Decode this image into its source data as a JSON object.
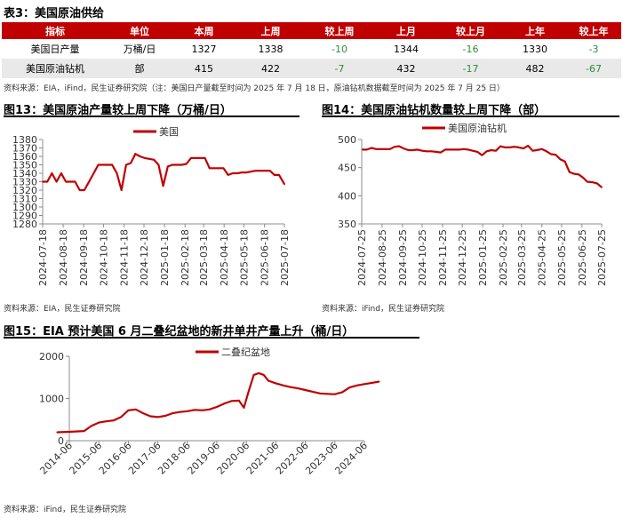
{
  "table": {
    "title": "表3：美国原油供给",
    "headers": [
      "指标",
      "单位",
      "本周",
      "上周",
      "较上周",
      "上月",
      "较上月",
      "上年",
      "较上年"
    ],
    "rows": [
      [
        "美国日产量",
        "万桶/日",
        "1327",
        "1338",
        "-10",
        "1344",
        "-16",
        "1330",
        "-3"
      ],
      [
        "美国原油钻机",
        "部",
        "415",
        "422",
        "-7",
        "432",
        "-17",
        "482",
        "-67"
      ]
    ],
    "source": "资料来源：EIA，iFind，民生证券研究院（注：美国日产量截至时间为 2025 年 7 月 18 日，原油钻机数据截至时间为 2025 年 7 月 25 日）"
  },
  "chart_data": [
    {
      "id": "fig13",
      "type": "line",
      "title": "图13：美国原油产量较上周下降（万桶/日）",
      "source": "资料来源：EIA，民生证券研究院",
      "legend": "top-center",
      "ylim": [
        1280,
        1380
      ],
      "yticks": [
        1280,
        1290,
        1300,
        1310,
        1320,
        1330,
        1340,
        1350,
        1360,
        1370,
        1380
      ],
      "xlim": [
        "2024-07-18",
        "2025-07-18"
      ],
      "xticks": [
        "2024-07-18",
        "2024-08-18",
        "2024-09-18",
        "2024-10-18",
        "2024-11-18",
        "2024-12-18",
        "2025-01-18",
        "2025-02-18",
        "2025-03-18",
        "2025-04-18",
        "2025-05-18",
        "2025-06-18",
        "2025-07-18"
      ],
      "series": [
        {
          "name": "美国",
          "color": "#c00000",
          "x": [
            "2024-07-18",
            "2024-07-25",
            "2024-08-01",
            "2024-08-08",
            "2024-08-15",
            "2024-08-22",
            "2024-08-29",
            "2024-09-05",
            "2024-09-12",
            "2024-09-19",
            "2024-09-26",
            "2024-10-03",
            "2024-10-10",
            "2024-10-17",
            "2024-10-24",
            "2024-10-31",
            "2024-11-07",
            "2024-11-14",
            "2024-11-21",
            "2024-11-28",
            "2024-12-05",
            "2024-12-12",
            "2024-12-19",
            "2024-12-26",
            "2025-01-02",
            "2025-01-09",
            "2025-01-16",
            "2025-01-23",
            "2025-01-30",
            "2025-02-06",
            "2025-02-13",
            "2025-02-20",
            "2025-02-27",
            "2025-03-06",
            "2025-03-13",
            "2025-03-20",
            "2025-03-27",
            "2025-04-03",
            "2025-04-10",
            "2025-04-17",
            "2025-04-24",
            "2025-05-01",
            "2025-05-08",
            "2025-05-15",
            "2025-05-22",
            "2025-05-29",
            "2025-06-05",
            "2025-06-12",
            "2025-06-19",
            "2025-06-26",
            "2025-07-03",
            "2025-07-10",
            "2025-07-18"
          ],
          "values": [
            1330,
            1330,
            1340,
            1330,
            1340,
            1330,
            1330,
            1330,
            1320,
            1320,
            1330,
            1340,
            1350,
            1350,
            1350,
            1350,
            1340,
            1320,
            1350,
            1352,
            1363,
            1360,
            1358,
            1357,
            1356,
            1350,
            1325,
            1348,
            1350,
            1350,
            1350,
            1351,
            1358,
            1358,
            1358,
            1358,
            1346,
            1346,
            1346,
            1346,
            1338,
            1340,
            1340,
            1341,
            1341,
            1342,
            1343,
            1343,
            1343,
            1343,
            1338,
            1338,
            1327
          ]
        }
      ]
    },
    {
      "id": "fig14",
      "type": "line",
      "title": "图14：美国原油钻机数量较上周下降（部）",
      "source": "资料来源：iFind，民生证券研究院",
      "legend": "top-center",
      "ylim": [
        350,
        500
      ],
      "yticks": [
        350,
        400,
        450,
        500
      ],
      "xlim": [
        "2024-07-25",
        "2025-07-25"
      ],
      "xticks": [
        "2024-07-25",
        "2024-08-25",
        "2024-09-25",
        "2024-10-25",
        "2024-11-25",
        "2024-12-25",
        "2025-01-25",
        "2025-02-25",
        "2025-03-25",
        "2025-04-25",
        "2025-05-25",
        "2025-06-25",
        "2025-07-25"
      ],
      "series": [
        {
          "name": "美国原油钻机",
          "color": "#c00000",
          "x": [
            "2024-07-26",
            "2024-08-02",
            "2024-08-09",
            "2024-08-16",
            "2024-08-23",
            "2024-08-30",
            "2024-09-06",
            "2024-09-13",
            "2024-09-20",
            "2024-09-27",
            "2024-10-04",
            "2024-10-11",
            "2024-10-18",
            "2024-10-25",
            "2024-11-01",
            "2024-11-08",
            "2024-11-15",
            "2024-11-22",
            "2024-11-29",
            "2024-12-06",
            "2024-12-13",
            "2024-12-20",
            "2024-12-27",
            "2025-01-03",
            "2025-01-10",
            "2025-01-17",
            "2025-01-24",
            "2025-01-31",
            "2025-02-07",
            "2025-02-14",
            "2025-02-21",
            "2025-02-28",
            "2025-03-07",
            "2025-03-14",
            "2025-03-21",
            "2025-03-28",
            "2025-04-04",
            "2025-04-11",
            "2025-04-17",
            "2025-04-25",
            "2025-05-02",
            "2025-05-09",
            "2025-05-16",
            "2025-05-23",
            "2025-05-30",
            "2025-06-06",
            "2025-06-13",
            "2025-06-20",
            "2025-06-27",
            "2025-07-03",
            "2025-07-11",
            "2025-07-18",
            "2025-07-25"
          ],
          "values": [
            482,
            482,
            485,
            483,
            483,
            483,
            483,
            487,
            488,
            484,
            481,
            481,
            482,
            480,
            479,
            479,
            478,
            477,
            482,
            482,
            482,
            482,
            483,
            482,
            480,
            478,
            472,
            479,
            481,
            480,
            488,
            486,
            486,
            487,
            486,
            484,
            489,
            480,
            481,
            483,
            479,
            474,
            473,
            465,
            461,
            442,
            439,
            438,
            432,
            425,
            424,
            422,
            415
          ]
        }
      ]
    },
    {
      "id": "fig15",
      "type": "line",
      "title": "图15：EIA 预计美国 6 月二叠纪盆地的新井单井产量上升（桶/日）",
      "source": "资料来源：iFind，民生证券研究院",
      "legend": "top-center",
      "ylim": [
        0,
        2000
      ],
      "yticks": [
        0,
        1000,
        2000
      ],
      "xlim": [
        "2014-06",
        "2024-06"
      ],
      "xticks": [
        "2014-06",
        "2015-06",
        "2016-06",
        "2017-06",
        "2018-06",
        "2019-06",
        "2020-06",
        "2021-06",
        "2022-06",
        "2023-06",
        "2024-06"
      ],
      "series": [
        {
          "name": "二叠纪盆地",
          "color": "#c00000",
          "x": [
            "2014-01",
            "2014-06",
            "2014-12",
            "2015-03",
            "2015-06",
            "2015-09",
            "2015-12",
            "2016-03",
            "2016-06",
            "2016-09",
            "2016-12",
            "2017-03",
            "2017-06",
            "2017-09",
            "2017-12",
            "2018-03",
            "2018-06",
            "2018-09",
            "2018-12",
            "2019-03",
            "2019-06",
            "2019-09",
            "2019-12",
            "2020-03",
            "2020-05",
            "2020-07",
            "2020-09",
            "2020-11",
            "2021-01",
            "2021-03",
            "2021-06",
            "2021-09",
            "2021-12",
            "2022-03",
            "2022-06",
            "2022-09",
            "2022-12",
            "2023-03",
            "2023-06",
            "2023-09",
            "2023-12",
            "2024-03",
            "2024-06",
            "2024-09",
            "2024-12"
          ],
          "values": [
            200,
            210,
            230,
            350,
            430,
            460,
            480,
            560,
            720,
            740,
            650,
            580,
            560,
            590,
            650,
            680,
            700,
            730,
            720,
            740,
            800,
            880,
            940,
            950,
            780,
            1180,
            1560,
            1600,
            1560,
            1420,
            1360,
            1310,
            1270,
            1240,
            1200,
            1160,
            1120,
            1110,
            1100,
            1150,
            1260,
            1310,
            1340,
            1370,
            1400
          ]
        }
      ]
    }
  ]
}
